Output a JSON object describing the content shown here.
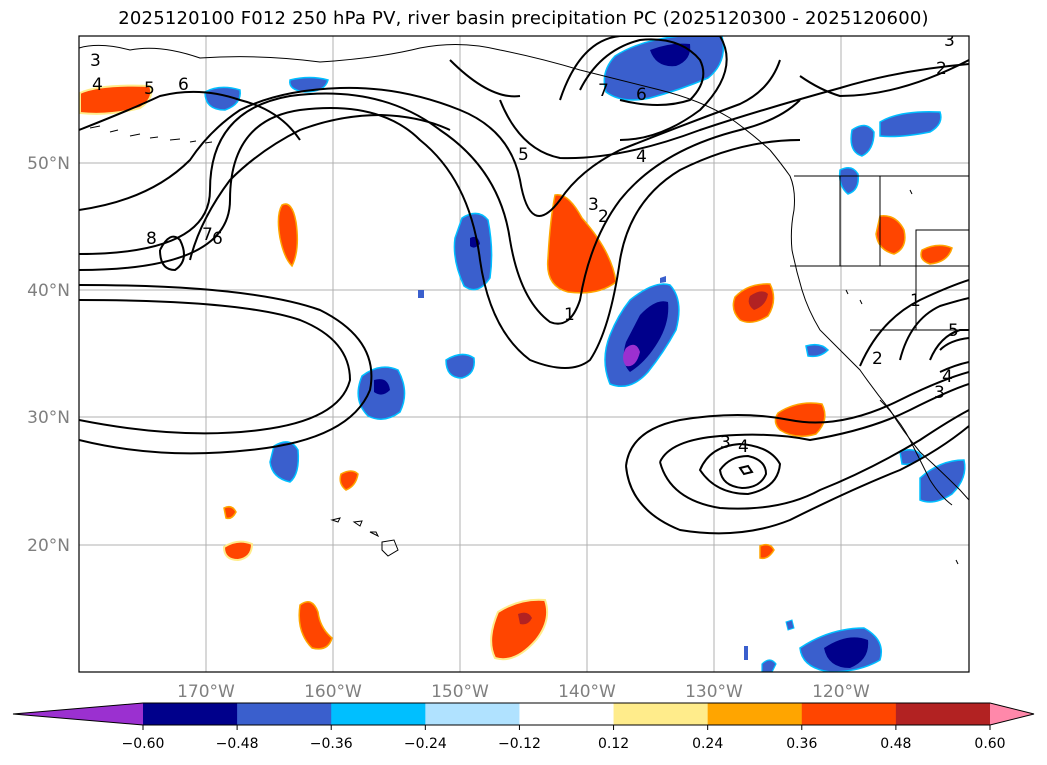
{
  "title": "2025120100 F012 250 hPa PV, river basin precipitation PC (2025120300 - 2025120600)",
  "axes": {
    "lat_labels": [
      "50°N",
      "40°N",
      "30°N",
      "20°N"
    ],
    "lon_labels": [
      "170°W",
      "160°W",
      "150°W",
      "140°W",
      "130°W",
      "120°W"
    ]
  },
  "colorbar": {
    "bins": [
      "#9b30d0",
      "#00008b",
      "#3a5fcd",
      "#00bfff",
      "#b0e2ff",
      "#ffffff",
      "#ffec8b",
      "#ffa500",
      "#ff4500",
      "#b22222",
      "#ff88aa"
    ],
    "tick_labels": [
      "−0.60",
      "−0.48",
      "−0.36",
      "−0.24",
      "−0.12",
      "0.12",
      "0.24",
      "0.36",
      "0.48",
      "0.60"
    ]
  },
  "contour_labels": [
    "4",
    "5",
    "6",
    "3",
    "8",
    "7",
    "6",
    "7",
    "6",
    "5",
    "4",
    "3",
    "2",
    "1",
    "1",
    "2",
    "3",
    "4",
    "5",
    "3",
    "4",
    "3",
    "2"
  ]
}
